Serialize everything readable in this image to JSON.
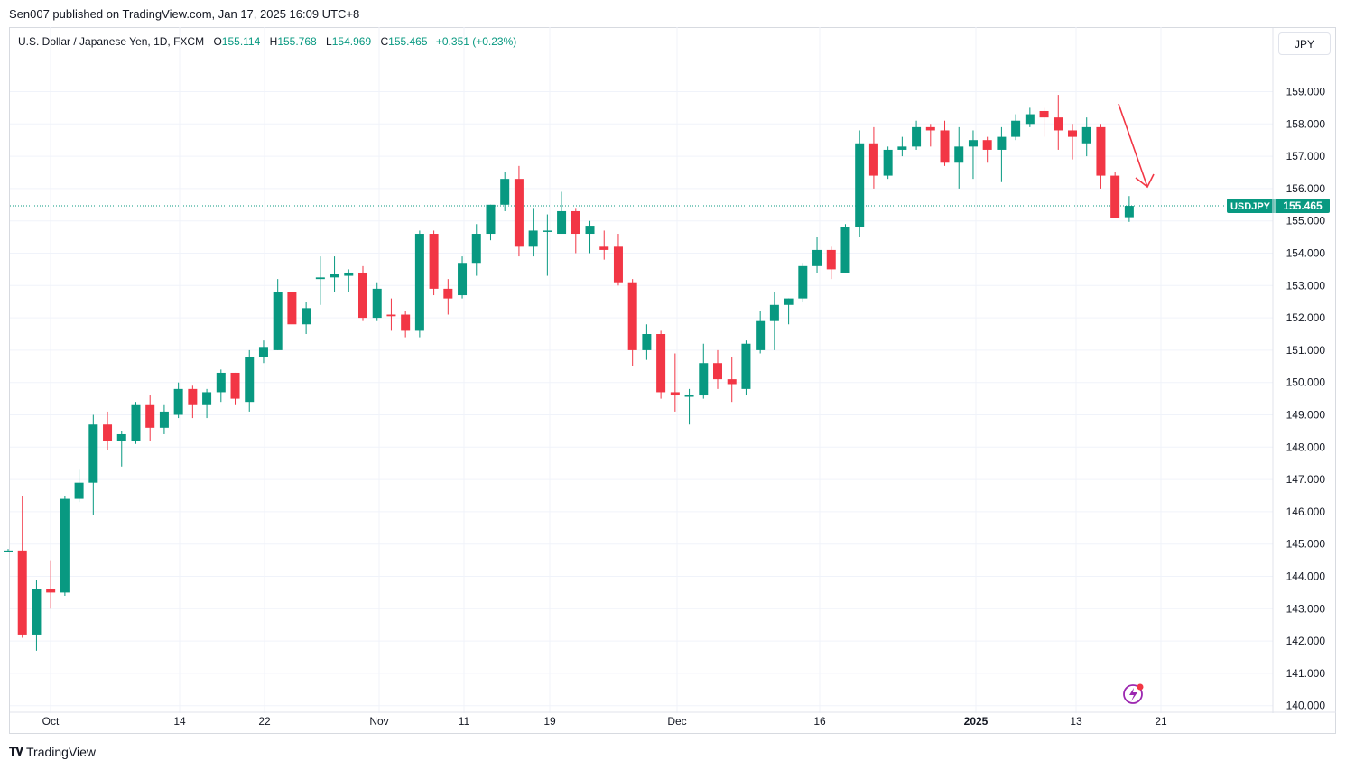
{
  "header": {
    "published": "Sen007 published on TradingView.com, Jan 17, 2025 16:09 UTC+8"
  },
  "legend": {
    "symbol": "U.S. Dollar / Japanese Yen, 1D, FXCM",
    "o_label": "O",
    "o_value": "155.114",
    "h_label": "H",
    "h_value": "155.768",
    "l_label": "L",
    "l_value": "154.969",
    "c_label": "C",
    "c_value": "155.465",
    "change": "+0.351 (+0.23%)"
  },
  "currency_button": "JPY",
  "price_tag": {
    "symbol": "USDJPY",
    "price": "155.465"
  },
  "footer": {
    "brand": "TradingView"
  },
  "colors": {
    "up": "#089981",
    "down": "#f23645",
    "grid": "#f0f3fa",
    "arrow": "#f23645"
  },
  "chart_data": {
    "type": "candlestick",
    "y_ticks": [
      "159.000",
      "158.000",
      "157.000",
      "156.000",
      "155.000",
      "154.000",
      "153.000",
      "152.000",
      "151.000",
      "150.000",
      "149.000",
      "148.000",
      "147.000",
      "146.000",
      "145.000",
      "144.000",
      "143.000",
      "142.000",
      "141.000",
      "140.000"
    ],
    "x_ticks": [
      "Oct",
      "14",
      "22",
      "Nov",
      "11",
      "19",
      "Dec",
      "16",
      "2025",
      "13",
      "21"
    ],
    "ylim": [
      139.7,
      160.4
    ],
    "last_price": 155.465,
    "candles": [
      {
        "o": 144.8,
        "h": 144.85,
        "l": 144.75,
        "c": 144.8
      },
      {
        "o": 144.8,
        "h": 146.5,
        "l": 142.1,
        "c": 142.2
      },
      {
        "o": 142.2,
        "h": 143.9,
        "l": 141.7,
        "c": 143.6
      },
      {
        "o": 143.6,
        "h": 144.5,
        "l": 143.0,
        "c": 143.5
      },
      {
        "o": 143.5,
        "h": 146.5,
        "l": 143.4,
        "c": 146.4
      },
      {
        "o": 146.4,
        "h": 147.3,
        "l": 146.3,
        "c": 146.9
      },
      {
        "o": 146.9,
        "h": 149.0,
        "l": 145.9,
        "c": 148.7
      },
      {
        "o": 148.7,
        "h": 149.1,
        "l": 147.9,
        "c": 148.2
      },
      {
        "o": 148.2,
        "h": 148.5,
        "l": 147.4,
        "c": 148.4
      },
      {
        "o": 148.2,
        "h": 149.4,
        "l": 148.1,
        "c": 149.3
      },
      {
        "o": 149.3,
        "h": 149.6,
        "l": 148.2,
        "c": 148.6
      },
      {
        "o": 148.6,
        "h": 149.3,
        "l": 148.4,
        "c": 149.1
      },
      {
        "o": 149.0,
        "h": 150.0,
        "l": 148.9,
        "c": 149.8
      },
      {
        "o": 149.8,
        "h": 149.9,
        "l": 148.9,
        "c": 149.3
      },
      {
        "o": 149.3,
        "h": 149.8,
        "l": 148.9,
        "c": 149.7
      },
      {
        "o": 149.7,
        "h": 150.4,
        "l": 149.4,
        "c": 150.3
      },
      {
        "o": 150.3,
        "h": 150.3,
        "l": 149.3,
        "c": 149.5
      },
      {
        "o": 149.4,
        "h": 151.0,
        "l": 149.1,
        "c": 150.8
      },
      {
        "o": 150.8,
        "h": 151.3,
        "l": 150.6,
        "c": 151.1
      },
      {
        "o": 151.0,
        "h": 153.2,
        "l": 151.0,
        "c": 152.8
      },
      {
        "o": 152.8,
        "h": 152.8,
        "l": 151.8,
        "c": 151.8
      },
      {
        "o": 151.8,
        "h": 152.5,
        "l": 151.5,
        "c": 152.3
      },
      {
        "o": 153.2,
        "h": 153.9,
        "l": 152.4,
        "c": 153.25
      },
      {
        "o": 153.25,
        "h": 153.9,
        "l": 152.8,
        "c": 153.35
      },
      {
        "o": 153.3,
        "h": 153.5,
        "l": 152.8,
        "c": 153.4
      },
      {
        "o": 153.4,
        "h": 153.6,
        "l": 151.9,
        "c": 152.0
      },
      {
        "o": 152.0,
        "h": 153.1,
        "l": 151.9,
        "c": 152.9
      },
      {
        "o": 152.1,
        "h": 152.6,
        "l": 151.6,
        "c": 152.05
      },
      {
        "o": 152.1,
        "h": 152.2,
        "l": 151.4,
        "c": 151.6
      },
      {
        "o": 151.6,
        "h": 154.7,
        "l": 151.4,
        "c": 154.6
      },
      {
        "o": 154.6,
        "h": 154.7,
        "l": 152.7,
        "c": 152.9
      },
      {
        "o": 152.9,
        "h": 153.2,
        "l": 152.1,
        "c": 152.6
      },
      {
        "o": 152.7,
        "h": 153.9,
        "l": 152.6,
        "c": 153.7
      },
      {
        "o": 153.7,
        "h": 154.9,
        "l": 153.3,
        "c": 154.6
      },
      {
        "o": 154.6,
        "h": 155.5,
        "l": 154.4,
        "c": 155.5
      },
      {
        "o": 155.5,
        "h": 156.5,
        "l": 155.3,
        "c": 156.3
      },
      {
        "o": 156.3,
        "h": 156.7,
        "l": 153.9,
        "c": 154.2
      },
      {
        "o": 154.2,
        "h": 155.4,
        "l": 153.9,
        "c": 154.7
      },
      {
        "o": 154.7,
        "h": 155.2,
        "l": 153.3,
        "c": 154.7
      },
      {
        "o": 154.6,
        "h": 155.9,
        "l": 154.6,
        "c": 155.3
      },
      {
        "o": 155.3,
        "h": 155.4,
        "l": 154.0,
        "c": 154.6
      },
      {
        "o": 154.6,
        "h": 155.0,
        "l": 154.0,
        "c": 154.85
      },
      {
        "o": 154.2,
        "h": 154.7,
        "l": 153.8,
        "c": 154.1
      },
      {
        "o": 154.2,
        "h": 154.6,
        "l": 153.0,
        "c": 153.1
      },
      {
        "o": 153.1,
        "h": 153.2,
        "l": 150.5,
        "c": 151.0
      },
      {
        "o": 151.0,
        "h": 151.8,
        "l": 150.7,
        "c": 151.5
      },
      {
        "o": 151.5,
        "h": 151.6,
        "l": 149.5,
        "c": 149.7
      },
      {
        "o": 149.7,
        "h": 150.9,
        "l": 149.1,
        "c": 149.6
      },
      {
        "o": 149.6,
        "h": 149.8,
        "l": 148.7,
        "c": 149.6
      },
      {
        "o": 149.6,
        "h": 151.2,
        "l": 149.5,
        "c": 150.6
      },
      {
        "o": 150.6,
        "h": 151.0,
        "l": 149.8,
        "c": 150.1
      },
      {
        "o": 150.1,
        "h": 150.8,
        "l": 149.4,
        "c": 149.95
      },
      {
        "o": 149.8,
        "h": 151.3,
        "l": 149.6,
        "c": 151.2
      },
      {
        "o": 151.0,
        "h": 152.2,
        "l": 150.9,
        "c": 151.9
      },
      {
        "o": 151.9,
        "h": 152.8,
        "l": 151.0,
        "c": 152.4
      },
      {
        "o": 152.4,
        "h": 152.6,
        "l": 151.8,
        "c": 152.6
      },
      {
        "o": 152.6,
        "h": 153.7,
        "l": 152.5,
        "c": 153.6
      },
      {
        "o": 153.6,
        "h": 154.5,
        "l": 153.4,
        "c": 154.1
      },
      {
        "o": 154.1,
        "h": 154.2,
        "l": 153.2,
        "c": 153.5
      },
      {
        "o": 153.4,
        "h": 154.9,
        "l": 153.4,
        "c": 154.8
      },
      {
        "o": 154.8,
        "h": 157.8,
        "l": 154.5,
        "c": 157.4
      },
      {
        "o": 157.4,
        "h": 157.9,
        "l": 156.0,
        "c": 156.4
      },
      {
        "o": 156.4,
        "h": 157.3,
        "l": 156.3,
        "c": 157.2
      },
      {
        "o": 157.2,
        "h": 157.6,
        "l": 157.0,
        "c": 157.3
      },
      {
        "o": 157.3,
        "h": 158.1,
        "l": 157.2,
        "c": 157.9
      },
      {
        "o": 157.9,
        "h": 158.0,
        "l": 157.3,
        "c": 157.8
      },
      {
        "o": 157.8,
        "h": 158.1,
        "l": 156.7,
        "c": 156.8
      },
      {
        "o": 156.8,
        "h": 157.9,
        "l": 156.0,
        "c": 157.3
      },
      {
        "o": 157.3,
        "h": 157.8,
        "l": 156.3,
        "c": 157.5
      },
      {
        "o": 157.5,
        "h": 157.6,
        "l": 156.8,
        "c": 157.2
      },
      {
        "o": 157.2,
        "h": 157.9,
        "l": 156.2,
        "c": 157.6
      },
      {
        "o": 157.6,
        "h": 158.3,
        "l": 157.5,
        "c": 158.1
      },
      {
        "o": 158.0,
        "h": 158.5,
        "l": 157.9,
        "c": 158.3
      },
      {
        "o": 158.4,
        "h": 158.5,
        "l": 157.6,
        "c": 158.2
      },
      {
        "o": 158.2,
        "h": 158.9,
        "l": 157.2,
        "c": 157.8
      },
      {
        "o": 157.8,
        "h": 158.0,
        "l": 156.9,
        "c": 157.6
      },
      {
        "o": 157.4,
        "h": 158.2,
        "l": 157.0,
        "c": 157.9
      },
      {
        "o": 157.9,
        "h": 158.0,
        "l": 156.0,
        "c": 156.4
      },
      {
        "o": 156.4,
        "h": 156.5,
        "l": 155.1,
        "c": 155.1
      },
      {
        "o": 155.114,
        "h": 155.768,
        "l": 154.969,
        "c": 155.465
      }
    ],
    "annotation": "down-arrow"
  }
}
